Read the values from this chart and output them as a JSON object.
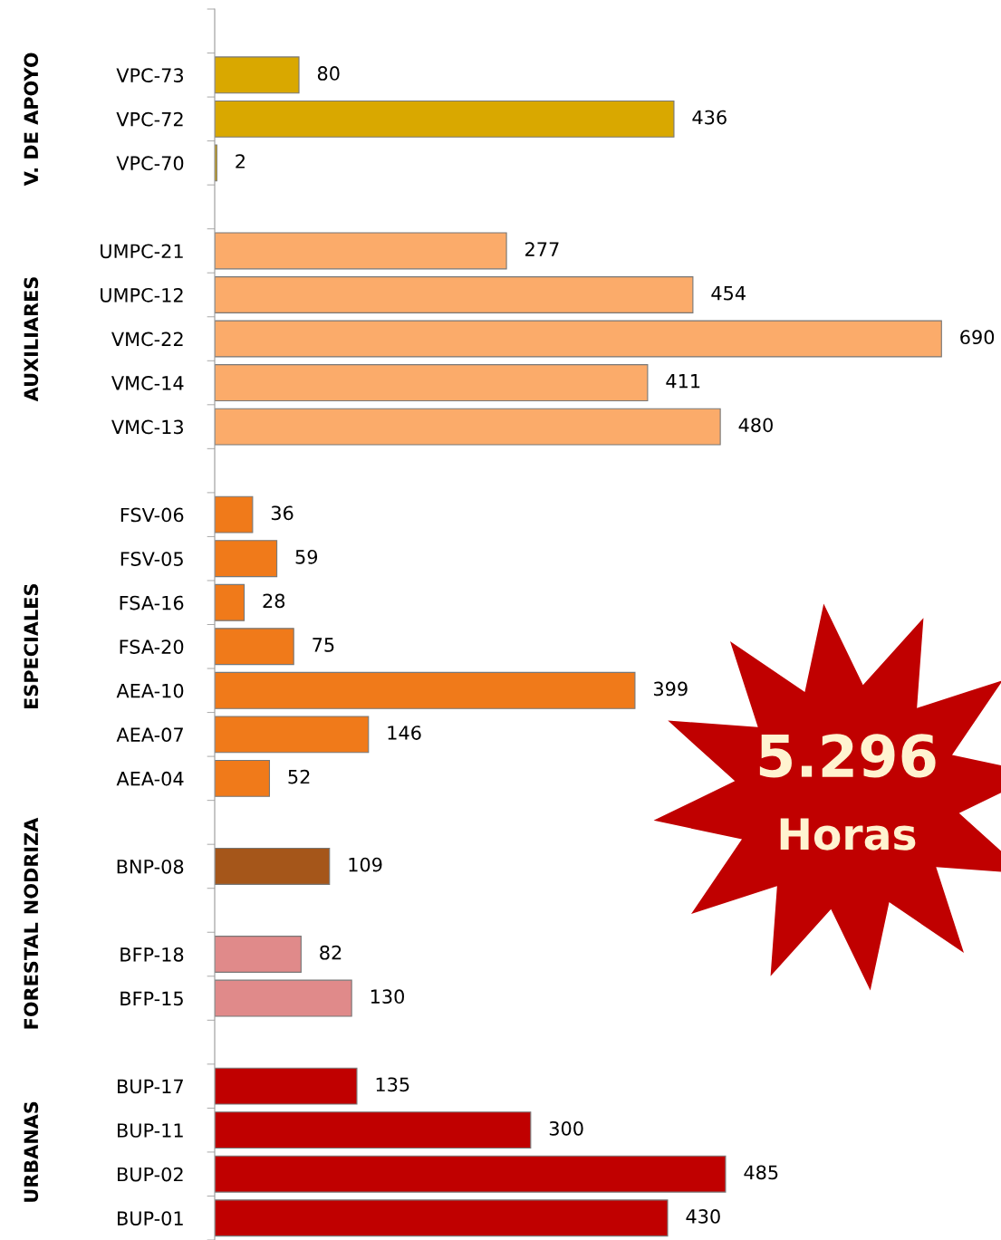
{
  "chart_data": {
    "type": "bar",
    "orientation": "horizontal",
    "data_labels": true,
    "grid": false,
    "categories": [
      null,
      "VPC-73",
      "VPC-72",
      "VPC-70",
      null,
      "UMPC-21",
      "UMPC-12",
      "VMC-22",
      "VMC-14",
      "VMC-13",
      null,
      "FSV-06",
      "FSV-05",
      "FSA-16",
      "FSA-20",
      "AEA-10",
      "AEA-07",
      "AEA-04",
      null,
      "BNP-08",
      null,
      "BFP-18",
      "BFP-15",
      null,
      "BUP-17",
      "BUP-11",
      "BUP-02",
      "BUP-01"
    ],
    "values": [
      null,
      80,
      436,
      2,
      null,
      277,
      454,
      690,
      411,
      480,
      null,
      36,
      59,
      28,
      75,
      399,
      146,
      52,
      null,
      109,
      null,
      82,
      130,
      null,
      135,
      300,
      485,
      430
    ],
    "colors": [
      "#ffffff",
      "#d9a800",
      "#d9a800",
      "#d9a800",
      "#ffffff",
      "#fbab6a",
      "#fbab6a",
      "#fbab6a",
      "#fbab6a",
      "#fbab6a",
      "#ffffff",
      "#f07a1a",
      "#f07a1a",
      "#f07a1a",
      "#f07a1a",
      "#f07a1a",
      "#f07a1a",
      "#f07a1a",
      "#ffffff",
      "#a5561a",
      "#ffffff",
      "#e08a8a",
      "#e08a8a",
      "#ffffff",
      "#c00000",
      "#c00000",
      "#c00000",
      "#c00000"
    ],
    "annotations": [
      "V. DE APOYO",
      "AUXILIARES",
      "ESPECIALES",
      "NODRIZA",
      "FORESTAL",
      "URBANAS",
      "5.296\nHoras"
    ]
  }
}
